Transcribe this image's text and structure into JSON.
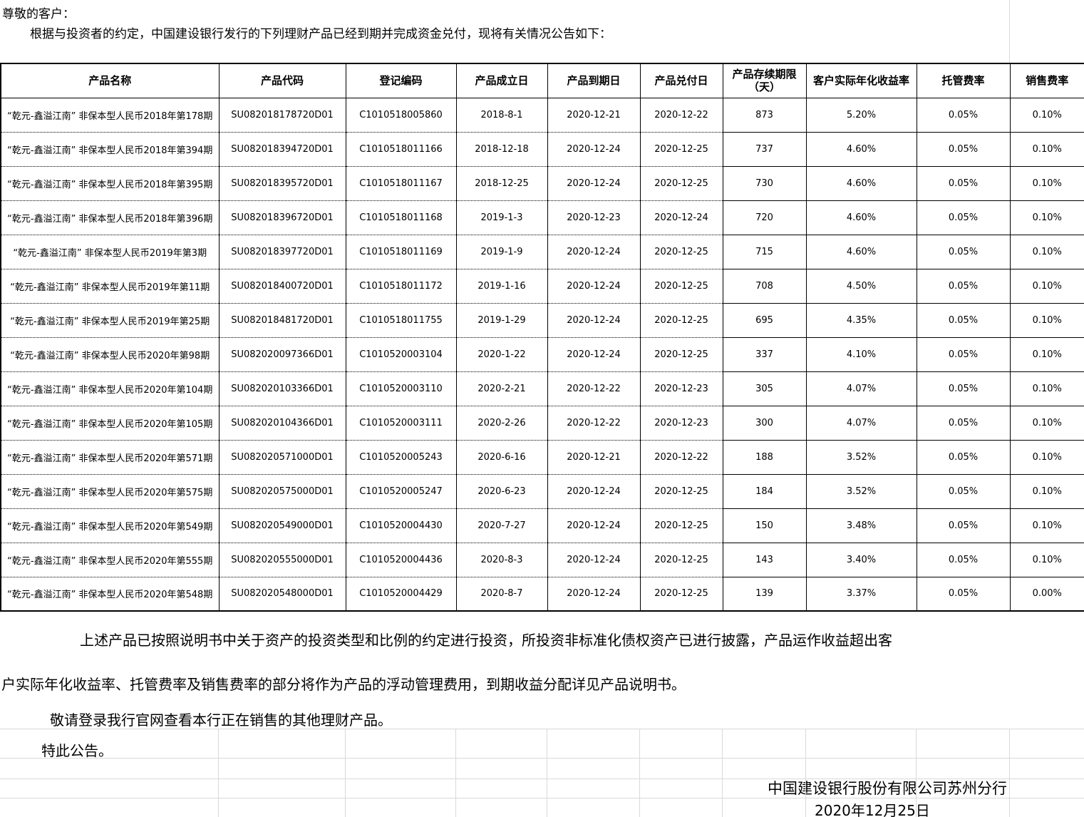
{
  "intro": {
    "line1": "尊敬的客户：",
    "line2": "根据与投资者的约定，中国建设银行发行的下列理财产品已经到期并完成资金兑付，现将有关情况公告如下："
  },
  "table": {
    "headers": [
      "产品名称",
      "产品代码",
      "登记编码",
      "产品成立日",
      "产品到期日",
      "产品兑付日",
      "产品存续期限（天）",
      "客户实际年化收益率",
      "托管费率",
      "销售费率"
    ],
    "rows": [
      [
        "“乾元-鑫溢江南” 非保本型人民币2018年第178期",
        "SU082018178720D01",
        "C1010518005860",
        "2018-8-1",
        "2020-12-21",
        "2020-12-22",
        "873",
        "5.20%",
        "0.05%",
        "0.10%"
      ],
      [
        "“乾元-鑫溢江南” 非保本型人民币2018年第394期",
        "SU082018394720D01",
        "C1010518011166",
        "2018-12-18",
        "2020-12-24",
        "2020-12-25",
        "737",
        "4.60%",
        "0.05%",
        "0.10%"
      ],
      [
        "“乾元-鑫溢江南” 非保本型人民币2018年第395期",
        "SU082018395720D01",
        "C1010518011167",
        "2018-12-25",
        "2020-12-24",
        "2020-12-25",
        "730",
        "4.60%",
        "0.05%",
        "0.10%"
      ],
      [
        "“乾元-鑫溢江南” 非保本型人民币2018年第396期",
        "SU082018396720D01",
        "C1010518011168",
        "2019-1-3",
        "2020-12-23",
        "2020-12-24",
        "720",
        "4.60%",
        "0.05%",
        "0.10%"
      ],
      [
        "“乾元-鑫溢江南” 非保本型人民币2019年第3期",
        "SU082018397720D01",
        "C1010518011169",
        "2019-1-9",
        "2020-12-24",
        "2020-12-25",
        "715",
        "4.60%",
        "0.05%",
        "0.10%"
      ],
      [
        "“乾元-鑫溢江南” 非保本型人民币2019年第11期",
        "SU082018400720D01",
        "C1010518011172",
        "2019-1-16",
        "2020-12-24",
        "2020-12-25",
        "708",
        "4.50%",
        "0.05%",
        "0.10%"
      ],
      [
        "“乾元-鑫溢江南” 非保本型人民币2019年第25期",
        "SU082018481720D01",
        "C1010518011755",
        "2019-1-29",
        "2020-12-24",
        "2020-12-25",
        "695",
        "4.35%",
        "0.05%",
        "0.10%"
      ],
      [
        "“乾元-鑫溢江南” 非保本型人民币2020年第98期",
        "SU082020097366D01",
        "C1010520003104",
        "2020-1-22",
        "2020-12-24",
        "2020-12-25",
        "337",
        "4.10%",
        "0.05%",
        "0.10%"
      ],
      [
        "“乾元-鑫溢江南” 非保本型人民币2020年第104期",
        "SU082020103366D01",
        "C1010520003110",
        "2020-2-21",
        "2020-12-22",
        "2020-12-23",
        "305",
        "4.07%",
        "0.05%",
        "0.10%"
      ],
      [
        "“乾元-鑫溢江南” 非保本型人民币2020年第105期",
        "SU082020104366D01",
        "C1010520003111",
        "2020-2-26",
        "2020-12-22",
        "2020-12-23",
        "300",
        "4.07%",
        "0.05%",
        "0.10%"
      ],
      [
        "“乾元-鑫溢江南” 非保本型人民币2020年第571期",
        "SU082020571000D01",
        "C1010520005243",
        "2020-6-16",
        "2020-12-21",
        "2020-12-22",
        "188",
        "3.52%",
        "0.05%",
        "0.10%"
      ],
      [
        "“乾元-鑫溢江南” 非保本型人民币2020年第575期",
        "SU082020575000D01",
        "C1010520005247",
        "2020-6-23",
        "2020-12-24",
        "2020-12-25",
        "184",
        "3.52%",
        "0.05%",
        "0.10%"
      ],
      [
        "“乾元-鑫溢江南” 非保本型人民币2020年第549期",
        "SU082020549000D01",
        "C1010520004430",
        "2020-7-27",
        "2020-12-24",
        "2020-12-25",
        "150",
        "3.48%",
        "0.05%",
        "0.10%"
      ],
      [
        "“乾元-鑫溢江南” 非保本型人民币2020年第555期",
        "SU082020555000D01",
        "C1010520004436",
        "2020-8-3",
        "2020-12-24",
        "2020-12-25",
        "143",
        "3.40%",
        "0.05%",
        "0.10%"
      ],
      [
        "“乾元-鑫溢江南” 非保本型人民币2020年第548期",
        "SU082020548000D01",
        "C1010520004429",
        "2020-8-7",
        "2020-12-24",
        "2020-12-25",
        "139",
        "3.37%",
        "0.05%",
        "0.00%"
      ]
    ]
  },
  "notes": {
    "para_line1": "上述产品已按照说明书中关于资产的投资类型和比例的约定进行投资，所投资非标准化债权资产已进行披露，产品运作收益超出客",
    "para_line2": "户实际年化收益率、托管费率及销售费率的部分将作为产品的浮动管理费用，到期收益分配详见产品说明书。",
    "line3": "敬请登录我行官网查看本行正在销售的其他理财产品。",
    "line4": "特此公告。"
  },
  "footer": {
    "issuer": "中国建设银行股份有限公司苏州分行",
    "date": "2020年12月25日"
  },
  "colors": {
    "text": "#000000",
    "table_border": "#000000",
    "sheet_gridline": "#d9d9d9",
    "background": "#ffffff"
  }
}
